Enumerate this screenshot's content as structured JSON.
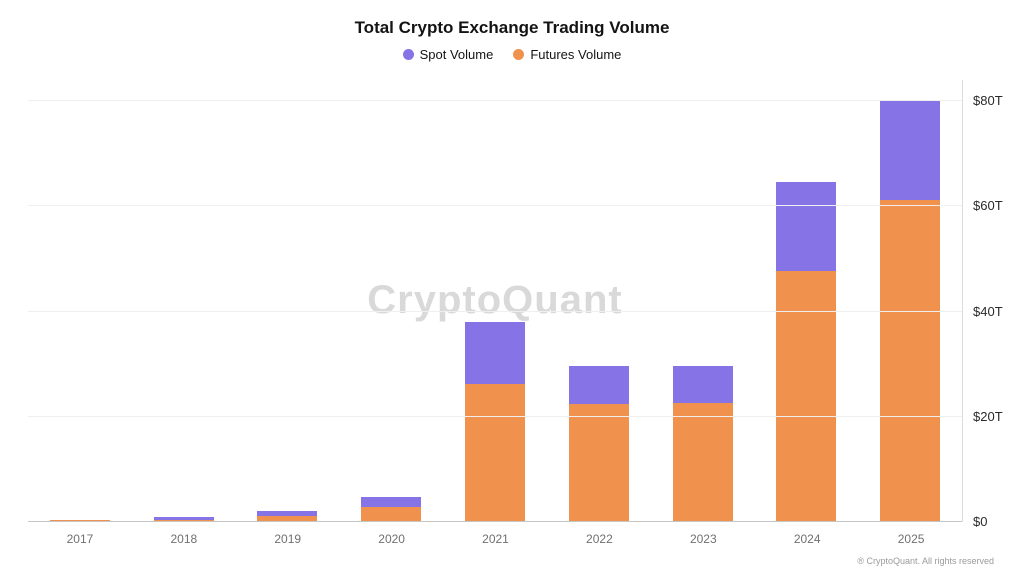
{
  "title": "Total Crypto Exchange Trading Volume",
  "legend": [
    {
      "label": "Spot Volume",
      "color": "#8673e6"
    },
    {
      "label": "Futures Volume",
      "color": "#f0914e"
    }
  ],
  "watermark": "CryptoQuant",
  "footer": "® CryptoQuant. All rights reserved",
  "chart_data": {
    "type": "bar",
    "stacked": true,
    "title": "Total Crypto Exchange Trading Volume",
    "categories": [
      "2017",
      "2018",
      "2019",
      "2020",
      "2021",
      "2022",
      "2023",
      "2024",
      "2025"
    ],
    "series": [
      {
        "name": "Futures Volume",
        "color": "#f0914e",
        "values": [
          0.1,
          0.2,
          1.0,
          2.7,
          26.0,
          22.2,
          22.5,
          47.5,
          61.0
        ]
      },
      {
        "name": "Spot Volume",
        "color": "#8673e6",
        "values": [
          0.15,
          0.6,
          0.9,
          1.9,
          11.8,
          7.3,
          7.0,
          17.0,
          19.0
        ]
      }
    ],
    "xlabel": "",
    "ylabel": "",
    "ylabel_ticks": [
      "$0",
      "$20T",
      "$40T",
      "$60T",
      "$80T"
    ],
    "ylim": [
      0,
      80
    ],
    "grid": true,
    "legend_position": "top",
    "y_axis_side": "right"
  }
}
